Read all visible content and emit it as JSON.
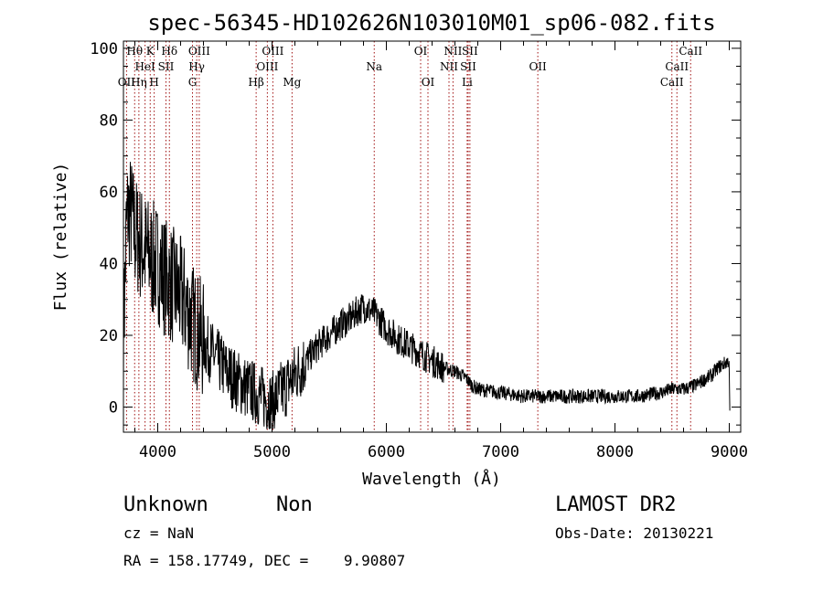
{
  "chart_data": {
    "type": "line",
    "title": "spec-56345-HD102626N103010M01_sp06-082.fits",
    "xlabel": "Wavelength (Å)",
    "ylabel": "Flux (relative)",
    "xlim": [
      3700,
      9100
    ],
    "ylim": [
      -7,
      102
    ],
    "xticks": [
      4000,
      5000,
      6000,
      7000,
      8000,
      9000
    ],
    "yticks": [
      0,
      20,
      40,
      60,
      80,
      100
    ],
    "grid": false,
    "series": [
      {
        "x": [
          3700,
          3710,
          3725,
          3740,
          3760,
          3780,
          3800,
          3830,
          3860,
          3900,
          3950,
          4000,
          4050,
          4100,
          4150,
          4200,
          4250,
          4300,
          4350,
          4400,
          4450,
          4500,
          4600,
          4700,
          4800,
          4900,
          4950,
          5000,
          5050,
          5100,
          5200,
          5300,
          5400,
          5500,
          5600,
          5700,
          5750,
          5800,
          5850,
          5900,
          5950,
          6000,
          6100,
          6200,
          6300,
          6350,
          6400,
          6500,
          6600,
          6700,
          6750,
          6800,
          7000,
          7200,
          7400,
          7600,
          7800,
          8000,
          8200,
          8400,
          8500,
          8600,
          8700,
          8750,
          8800,
          8850,
          8900,
          8950,
          9000
        ],
        "y": [
          22,
          30,
          50,
          55,
          54,
          52,
          48,
          47,
          45,
          43,
          41,
          40,
          37,
          35,
          33,
          31,
          28,
          24,
          21,
          18,
          16,
          14,
          10,
          7,
          5,
          3,
          2,
          1,
          3,
          5,
          9,
          13,
          17,
          20,
          23,
          25,
          27,
          28,
          27,
          26,
          24,
          22,
          19,
          17,
          15,
          14,
          13,
          11,
          10,
          8,
          6,
          5,
          4,
          3,
          3,
          3,
          3,
          3,
          3,
          4,
          5,
          5,
          6,
          7,
          8,
          9,
          11,
          12,
          13
        ]
      }
    ],
    "spectral_lines": [
      {
        "name": "OII",
        "wavelength": 3727,
        "row": 3
      },
      {
        "name": "Hθ",
        "wavelength": 3798,
        "row": 1
      },
      {
        "name": "Hη",
        "wavelength": 3835,
        "row": 3
      },
      {
        "name": "HeI",
        "wavelength": 3889,
        "row": 2
      },
      {
        "name": "K",
        "wavelength": 3934,
        "row": 1
      },
      {
        "name": "H",
        "wavelength": 3969,
        "row": 3
      },
      {
        "name": "SII",
        "wavelength": 4072,
        "row": 2
      },
      {
        "name": "Hδ",
        "wavelength": 4102,
        "row": 1
      },
      {
        "name": "G",
        "wavelength": 4304,
        "row": 3
      },
      {
        "name": "Hγ",
        "wavelength": 4341,
        "row": 2
      },
      {
        "name": "OIII",
        "wavelength": 4363,
        "row": 1
      },
      {
        "name": "Hβ",
        "wavelength": 4861,
        "row": 3
      },
      {
        "name": "OIII",
        "wavelength": 4959,
        "row": 2
      },
      {
        "name": "OIII",
        "wavelength": 5007,
        "row": 1
      },
      {
        "name": "Mg",
        "wavelength": 5175,
        "row": 3
      },
      {
        "name": "Na",
        "wavelength": 5894,
        "row": 2
      },
      {
        "name": "OI",
        "wavelength": 6300,
        "row": 1
      },
      {
        "name": "OI",
        "wavelength": 6364,
        "row": 3
      },
      {
        "name": "NII",
        "wavelength": 6548,
        "row": 2
      },
      {
        "name": "NII",
        "wavelength": 6583,
        "row": 1
      },
      {
        "name": "Li",
        "wavelength": 6707,
        "row": 3
      },
      {
        "name": "SII",
        "wavelength": 6716,
        "row": 2
      },
      {
        "name": "SII",
        "wavelength": 6731,
        "row": 1
      },
      {
        "name": "OII",
        "wavelength": 7325,
        "row": 2
      },
      {
        "name": "CaII",
        "wavelength": 8498,
        "row": 3
      },
      {
        "name": "CaII",
        "wavelength": 8542,
        "row": 2
      },
      {
        "name": "CaII",
        "wavelength": 8662,
        "row": 1
      }
    ]
  },
  "info": {
    "object_class": "Unknown",
    "subclass": "Non",
    "redshift": "cz = NaN",
    "coords": "RA = 158.17749, DEC =    9.90807",
    "survey": "LAMOST DR2",
    "obs_date": "Obs-Date: 20130221"
  },
  "colors": {
    "line": "#000000",
    "marker": "#a01010",
    "background": "#ffffff"
  }
}
